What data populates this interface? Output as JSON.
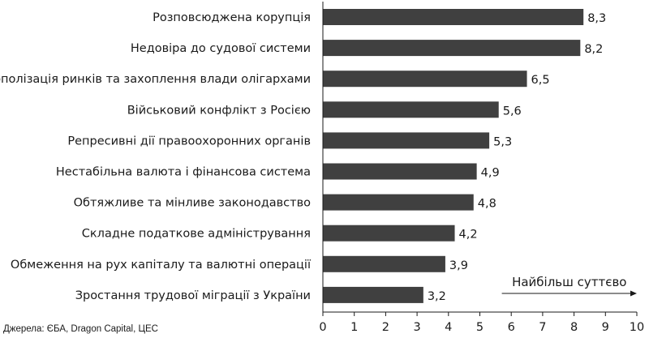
{
  "chart_data": {
    "type": "bar",
    "orientation": "horizontal",
    "categories": [
      "Розповсюджена корупція",
      "Недовіра до судової системи",
      "Монополізація ринків та захоплення влади олігархами",
      "Військовий конфлікт з Росією",
      "Репресивні дії правоохоронних органів",
      "Нестабільна валюта і фінансова система",
      "Обтяжливе та мінливе законодавство",
      "Складне податкове адміністрування",
      "Обмеження на рух капіталу та валютні операції",
      "Зростання трудової міграції з України"
    ],
    "values": [
      8.3,
      8.2,
      6.5,
      5.6,
      5.3,
      4.9,
      4.8,
      4.2,
      3.9,
      3.2
    ],
    "value_labels": [
      "8,3",
      "8,2",
      "6,5",
      "5,6",
      "5,3",
      "4,9",
      "4,8",
      "4,2",
      "3,9",
      "3,2"
    ],
    "xlim": [
      0,
      10
    ],
    "xticks": [
      0,
      1,
      2,
      3,
      4,
      5,
      6,
      7,
      8,
      9,
      10
    ],
    "grid": false,
    "bar_color": "#404040",
    "annotation": {
      "text": "Найбільш суттєво",
      "arrow_from": 5.7,
      "arrow_to": 10
    },
    "source": "Джерела: ЄБА, Dragon Capital, ЦЕС"
  }
}
